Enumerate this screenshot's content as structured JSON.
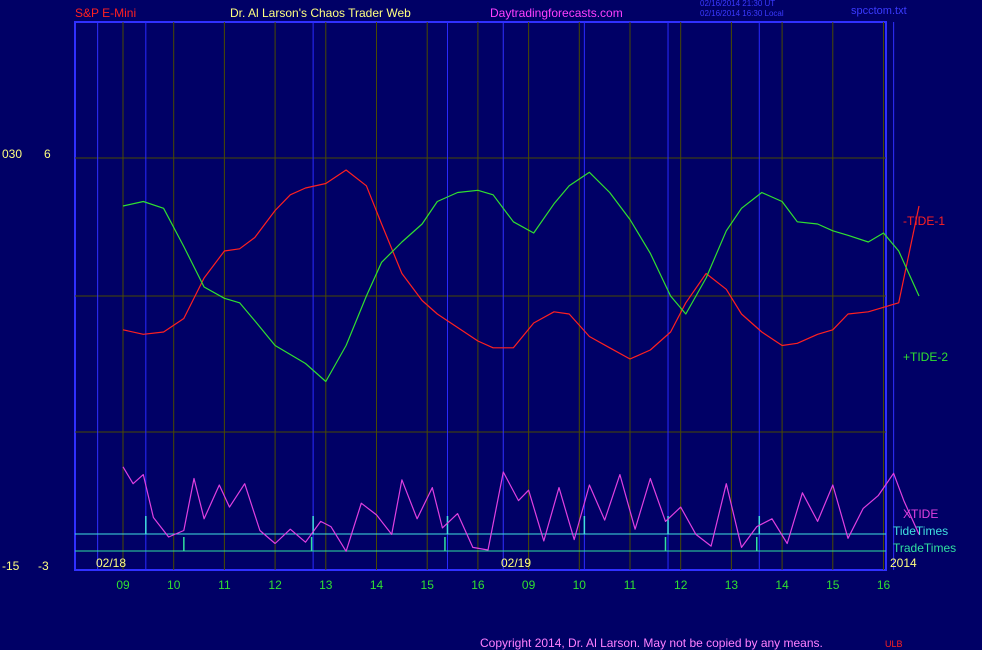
{
  "header": {
    "symbol": "S&P E-Mini",
    "title": "Dr. Al Larson's Chaos Trader Web",
    "site": "Daytradingforecasts.com",
    "stamp_line1": "02/16/2014 21:30 UT",
    "stamp_line2": "02/16/2014 16:30 Local",
    "file": "spcctom.txt"
  },
  "left_axis": {
    "top_label_a": "030",
    "top_label_b": "6",
    "bottom_label_a": "-15",
    "bottom_label_b": "-3"
  },
  "footer": {
    "copyright": "Copyright 2014, Dr. Al Larson. May not be copied by any means.",
    "badge": "ULB"
  },
  "colors": {
    "background": "#000066",
    "frame": "#3030ff",
    "grid": "#4a4a00",
    "tide1": "#ff2020",
    "tide2": "#30e030",
    "xtide": "#e040e0",
    "tide_times": "#40e0e0",
    "trade_times": "#30e0a0",
    "hour_labels": "#30e030",
    "date_labels": "#ffff80",
    "copyright": "#ff80ff"
  },
  "chart_data": {
    "type": "line",
    "x_hours": [
      "09",
      "10",
      "11",
      "12",
      "13",
      "14",
      "15",
      "16",
      "09",
      "10",
      "11",
      "12",
      "13",
      "14",
      "15",
      "16"
    ],
    "date_labels": [
      "02/18",
      "02/19"
    ],
    "year_label": "2014",
    "grid": true,
    "series": [
      {
        "name": "-TIDE-1",
        "x": [
          0,
          0.4,
          0.8,
          1.2,
          1.6,
          2.0,
          2.3,
          2.6,
          3.0,
          3.3,
          3.6,
          4.0,
          4.4,
          4.8,
          5.1,
          5.5,
          5.9,
          6.2,
          6.6,
          7.0,
          7.3,
          7.7,
          8.1,
          8.5,
          8.8,
          9.2,
          9.6,
          10.0,
          10.4,
          10.8,
          11.1,
          11.5,
          11.9,
          12.2,
          12.6,
          13.0,
          13.3,
          13.7,
          14.0,
          14.3,
          14.7,
          15.0,
          15.3,
          15.7
        ],
        "values": [
          -1.5,
          -1.7,
          -1.6,
          -1.0,
          0.8,
          2.0,
          2.1,
          2.6,
          3.8,
          4.5,
          4.8,
          5.0,
          5.6,
          4.9,
          3.2,
          1.0,
          -0.2,
          -0.8,
          -1.4,
          -2.0,
          -2.3,
          -2.3,
          -1.2,
          -0.7,
          -0.8,
          -1.8,
          -2.3,
          -2.8,
          -2.4,
          -1.6,
          -0.3,
          1.0,
          0.3,
          -0.8,
          -1.6,
          -2.2,
          -2.1,
          -1.7,
          -1.5,
          -0.8,
          -0.7,
          -0.5,
          -0.3,
          4.0
        ]
      },
      {
        "name": "+TIDE-2",
        "x": [
          0,
          0.4,
          0.8,
          1.2,
          1.6,
          2.0,
          2.3,
          2.6,
          3.0,
          3.3,
          3.6,
          4.0,
          4.4,
          4.8,
          5.1,
          5.5,
          5.9,
          6.2,
          6.6,
          7.0,
          7.3,
          7.7,
          8.1,
          8.5,
          8.8,
          9.2,
          9.6,
          10.0,
          10.4,
          10.8,
          11.1,
          11.5,
          11.9,
          12.2,
          12.6,
          13.0,
          13.3,
          13.7,
          14.0,
          14.3,
          14.7,
          15.0,
          15.3,
          15.7
        ],
        "values": [
          4.0,
          4.2,
          3.9,
          2.2,
          0.4,
          -0.1,
          -0.3,
          -1.1,
          -2.2,
          -2.6,
          -3.0,
          -3.8,
          -2.2,
          0.0,
          1.5,
          2.4,
          3.2,
          4.2,
          4.6,
          4.7,
          4.5,
          3.3,
          2.8,
          4.1,
          4.9,
          5.5,
          4.6,
          3.4,
          1.9,
          0.0,
          -0.8,
          0.8,
          2.9,
          3.9,
          4.6,
          4.2,
          3.3,
          3.2,
          2.9,
          2.7,
          2.4,
          2.8,
          2.0,
          0.0
        ]
      },
      {
        "name": "XTIDE",
        "x": [
          0,
          0.2,
          0.4,
          0.6,
          0.9,
          1.2,
          1.4,
          1.6,
          1.9,
          2.1,
          2.4,
          2.7,
          3.0,
          3.3,
          3.6,
          3.9,
          4.1,
          4.4,
          4.7,
          5.0,
          5.3,
          5.5,
          5.8,
          6.1,
          6.3,
          6.6,
          6.9,
          7.2,
          7.5,
          7.8,
          8.0,
          8.3,
          8.6,
          8.9,
          9.2,
          9.5,
          9.8,
          10.1,
          10.4,
          10.7,
          11.0,
          11.3,
          11.6,
          11.9,
          12.2,
          12.5,
          12.8,
          13.1,
          13.4,
          13.7,
          14.0,
          14.3,
          14.6,
          14.9,
          15.2,
          15.4,
          15.7
        ],
        "values": [
          3.4,
          2.1,
          2.8,
          -0.5,
          -2.0,
          -1.5,
          2.5,
          -0.6,
          2.0,
          0.3,
          2.1,
          -1.5,
          -2.5,
          -1.4,
          -2.4,
          -0.8,
          -1.2,
          -3.1,
          0.6,
          -0.3,
          -1.8,
          2.4,
          -0.6,
          1.8,
          -1.3,
          -0.2,
          -2.8,
          -3.0,
          3.0,
          0.8,
          1.6,
          -2.3,
          1.8,
          -2.2,
          2.0,
          -0.7,
          2.8,
          -1.4,
          2.5,
          -0.8,
          0.3,
          -1.8,
          -2.7,
          2.1,
          -2.8,
          -1.2,
          -0.6,
          -2.5,
          1.4,
          -0.8,
          2.0,
          -2.1,
          0.2,
          1.2,
          2.9,
          0.8,
          -1.8
        ]
      }
    ],
    "tide_times": [
      0.45,
      3.75,
      6.4,
      9.1,
      10.75,
      12.55
    ],
    "trade_times": [
      1.2,
      3.72,
      6.35,
      10.7,
      12.5
    ],
    "labels": {
      "tide1": "-TIDE-1",
      "tide2": "+TIDE-2",
      "xtide": "XTIDE",
      "tide_times": "TideTimes",
      "trade_times": "TradeTimes"
    }
  }
}
